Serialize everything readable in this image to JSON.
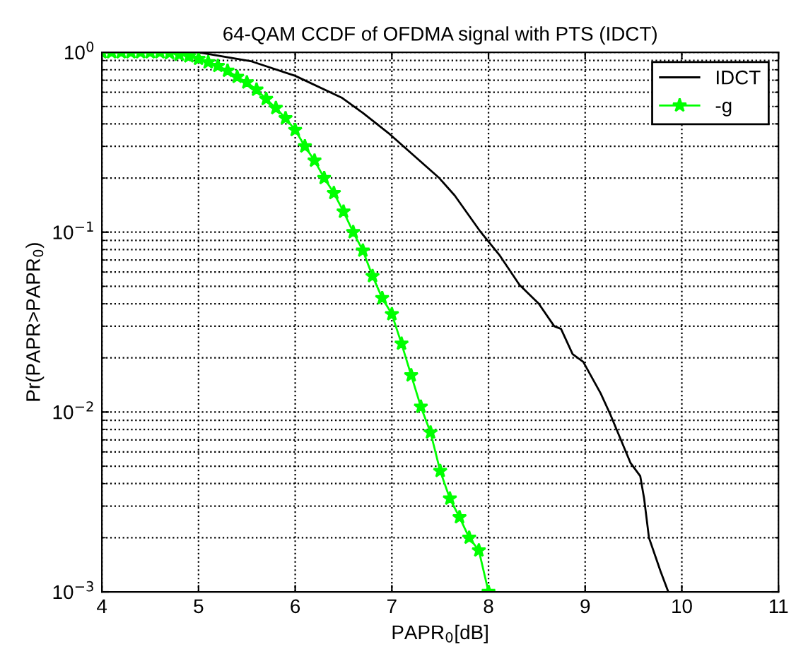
{
  "chart_data": {
    "type": "line",
    "title": "64-QAM CCDF of OFDMA signal with PTS (IDCT)",
    "xlabel": "PAPR$_{0}$[dB]",
    "ylabel": "Pr(PAPR>PAPR$_{0}$)",
    "log": "y",
    "grid": true,
    "legend": "top right",
    "xlim": [
      4,
      11
    ],
    "xticks": [
      4,
      5,
      6,
      7,
      8,
      9,
      10,
      11
    ],
    "ylim": [
      0.001,
      1
    ],
    "yticks": [
      {
        "value": 0.001,
        "label": "10$^{−3}$"
      },
      {
        "value": 0.01,
        "label": "10$^{−2}$"
      },
      {
        "value": 0.1,
        "label": "10$^{−1}$"
      },
      {
        "value": 1,
        "label": "10$^{0}$"
      }
    ],
    "series": [
      {
        "name": "IDCT",
        "color": "#000000",
        "marker": "none",
        "line_style": "solid",
        "x": [
          4.0,
          4.5,
          5.0,
          5.55,
          6.0,
          6.48,
          6.7,
          6.98,
          7.49,
          7.65,
          7.92,
          8.11,
          8.32,
          8.52,
          8.68,
          8.75,
          8.87,
          8.98,
          9.16,
          9.26,
          9.47,
          9.57,
          9.61,
          9.66,
          9.78,
          9.86
        ],
        "values": [
          1.0,
          1.0,
          1.0,
          0.89,
          0.74,
          0.56,
          0.46,
          0.35,
          0.2,
          0.16,
          0.1,
          0.075,
          0.051,
          0.04,
          0.03,
          0.029,
          0.021,
          0.019,
          0.0127,
          0.0097,
          0.0052,
          0.0044,
          0.0033,
          0.002,
          0.0013,
          0.001
        ]
      },
      {
        "name": "-g",
        "color": "#00ff00",
        "marker": "star",
        "line_style": "solid",
        "x": [
          4.0,
          4.1,
          4.2,
          4.3,
          4.4,
          4.5,
          4.6,
          4.7,
          4.8,
          4.9,
          5.0,
          5.1,
          5.2,
          5.3,
          5.4,
          5.5,
          5.6,
          5.7,
          5.8,
          5.9,
          6.0,
          6.1,
          6.2,
          6.3,
          6.4,
          6.5,
          6.6,
          6.7,
          6.8,
          6.9,
          7.0,
          7.1,
          7.2,
          7.3,
          7.4,
          7.5,
          7.6,
          7.7,
          7.8,
          7.9,
          8.0
        ],
        "values": [
          1.0,
          1.0,
          1.0,
          1.0,
          1.0,
          1.0,
          1.0,
          0.99,
          0.97,
          0.95,
          0.92,
          0.88,
          0.84,
          0.79,
          0.73,
          0.68,
          0.62,
          0.55,
          0.49,
          0.43,
          0.37,
          0.3,
          0.25,
          0.2,
          0.165,
          0.13,
          0.1,
          0.079,
          0.057,
          0.043,
          0.035,
          0.024,
          0.016,
          0.0107,
          0.0077,
          0.0047,
          0.0033,
          0.0026,
          0.002,
          0.0017,
          0.001
        ]
      }
    ]
  }
}
